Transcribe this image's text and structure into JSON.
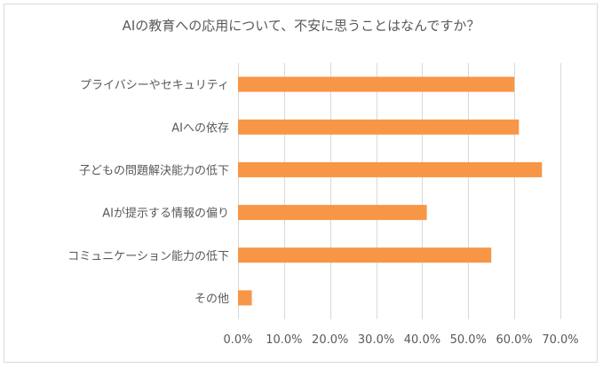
{
  "chart_data": {
    "type": "bar",
    "orientation": "horizontal",
    "title": "AIの教育への応用について、不安に思うことはなんですか？",
    "categories": [
      "プライバシーやセキュリティ",
      "AIへの依存",
      "子どもの問題解決能力の低下",
      "AIが提示する情報の偏り",
      "コミュニケーション能力の低下",
      "その他"
    ],
    "values": [
      60.0,
      61.0,
      66.0,
      41.0,
      55.0,
      3.0
    ],
    "xlim": [
      0,
      70
    ],
    "xticks": [
      0,
      10,
      20,
      30,
      40,
      50,
      60,
      70
    ],
    "xtick_labels": [
      "0.0%",
      "10.0%",
      "20.0%",
      "30.0%",
      "40.0%",
      "50.0%",
      "60.0%",
      "70.0%"
    ],
    "xlabel": "",
    "ylabel": "",
    "grid": true,
    "bar_color": "#F79646",
    "grid_color": "#D9D9D9",
    "text_color": "#595959"
  }
}
